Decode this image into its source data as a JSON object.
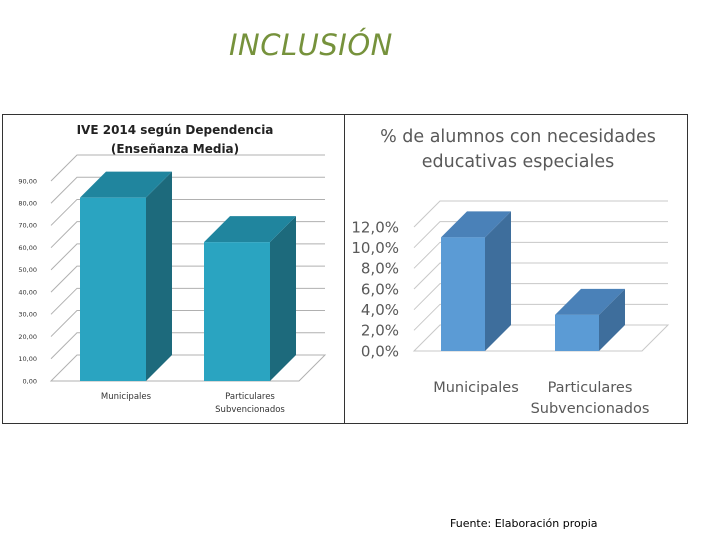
{
  "slide": {
    "title": "INCLUSIÓN",
    "source": "Fuente: Elaboración propia"
  },
  "chart_data": [
    {
      "type": "bar",
      "title_lines": [
        "IVE 2014 según Dependencia",
        "(Enseñanza Media)"
      ],
      "categories": [
        [
          "Municipales"
        ],
        [
          "Particulares",
          "Subvencionados"
        ]
      ],
      "values": [
        82.5,
        62.5
      ],
      "ylim": [
        0,
        90
      ],
      "yticks": [
        "0,00",
        "10,00",
        "20,00",
        "30,00",
        "40,00",
        "50,00",
        "60,00",
        "70,00",
        "80,00",
        "90,00"
      ],
      "grid": true,
      "bar_colors": {
        "front": "#2aa4c1",
        "side": "#1d6a7c",
        "top": "#20859e"
      }
    },
    {
      "type": "bar",
      "title_lines": [
        "% de alumnos con necesidades",
        "educativas especiales"
      ],
      "categories": [
        [
          "Municipales"
        ],
        [
          "Particulares",
          "Subvencionados"
        ]
      ],
      "values": [
        11.0,
        3.5
      ],
      "ylim": [
        0,
        12
      ],
      "yticks": [
        "0,0%",
        "2,0%",
        "4,0%",
        "6,0%",
        "8,0%",
        "10,0%",
        "12,0%"
      ],
      "grid": true,
      "bar_colors": {
        "front": "#5b9bd5",
        "side": "#3e6e9c",
        "top": "#4a81b8"
      }
    }
  ]
}
